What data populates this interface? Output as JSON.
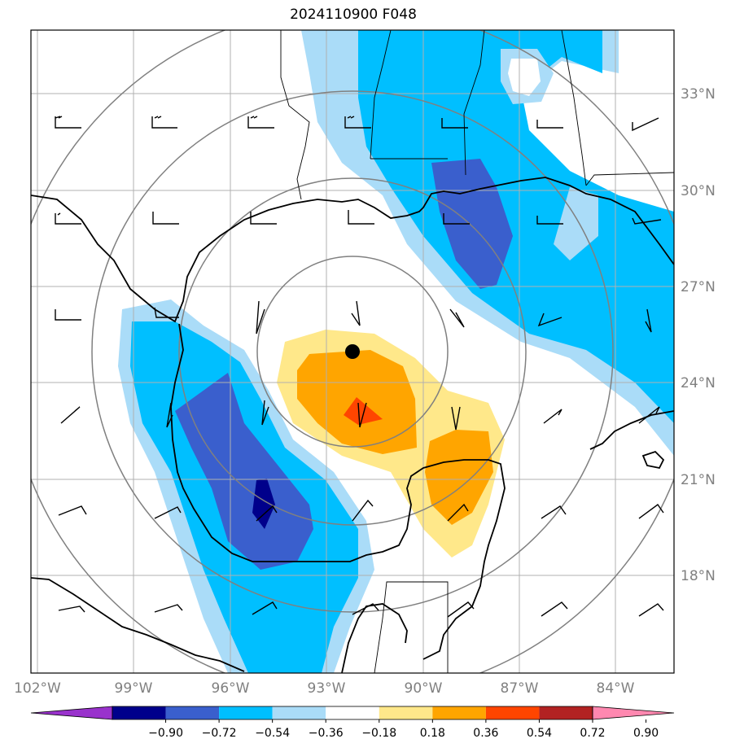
{
  "title": "2024110900 F048",
  "map": {
    "lat_labels": [
      "33°N",
      "30°N",
      "27°N",
      "24°N",
      "21°N",
      "18°N"
    ],
    "lon_labels": [
      "102°W",
      "99°W",
      "96°W",
      "93°W",
      "90°W",
      "87°W",
      "84°W"
    ],
    "storm_center": {
      "lat": 24.95,
      "lon": -92.35
    },
    "colors": {
      "blue_light": "#aadcf8",
      "blue": "#00bfff",
      "blue_mid": "#3a5fcd",
      "navy": "#00008b",
      "yellow": "#ffe88a",
      "orange": "#ffa500",
      "red_orange": "#ff4500",
      "coast": "#000000",
      "grid": "#b0b0b0",
      "rings": "#808080"
    }
  },
  "colorbar": {
    "labels": [
      "−0.90",
      "−0.72",
      "−0.54",
      "−0.36",
      "−0.18",
      "0.18",
      "0.36",
      "0.54",
      "0.72",
      "0.90"
    ],
    "levels": [
      -0.9,
      -0.72,
      -0.54,
      -0.36,
      -0.18,
      0.18,
      0.36,
      0.54,
      0.72,
      0.9
    ],
    "colors": [
      "#9932cc",
      "#00008b",
      "#3a5fcd",
      "#00bfff",
      "#aadcf8",
      "#ffffff",
      "#ffe88a",
      "#ffa500",
      "#ff4500",
      "#b22222",
      "#ff88b0"
    ]
  }
}
